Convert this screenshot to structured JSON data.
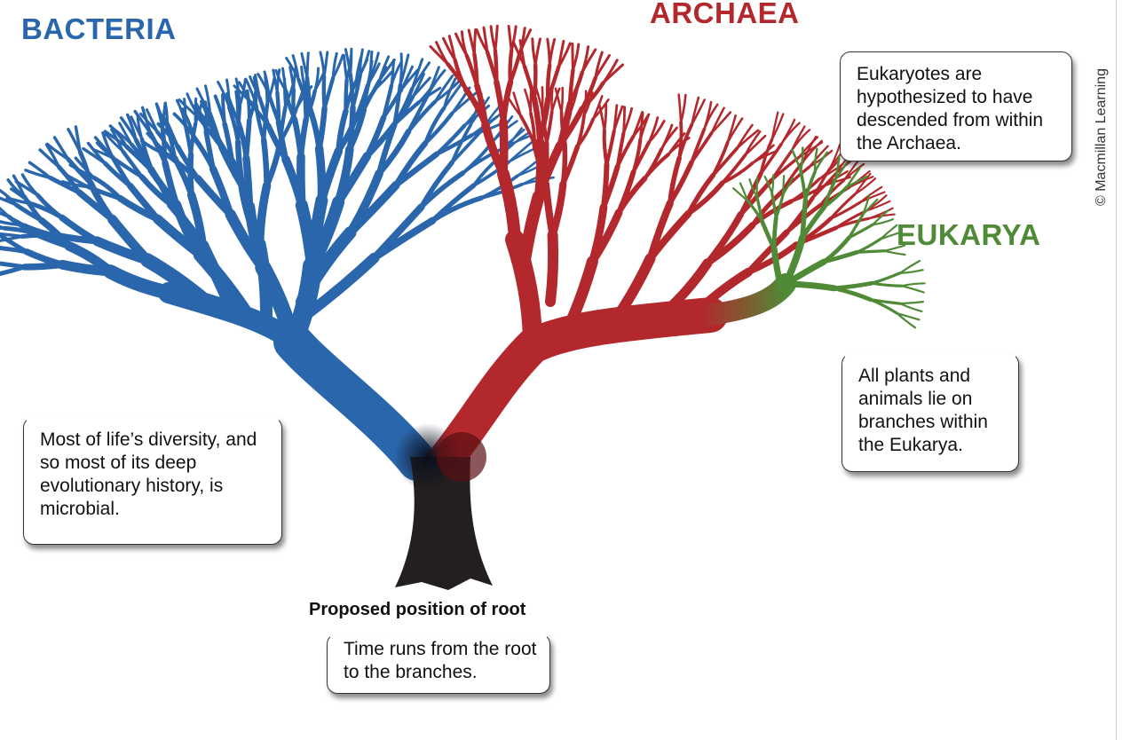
{
  "domains": [
    {
      "id": "bacteria",
      "label": "BACTERIA",
      "color": "#2a66ab"
    },
    {
      "id": "archaea",
      "label": "ARCHAEA",
      "color": "#b3282d"
    },
    {
      "id": "eukarya",
      "label": "EUKARYA",
      "color": "#4f8a36"
    }
  ],
  "root": {
    "caption": "Proposed position of root",
    "color": "#231f20"
  },
  "notes": {
    "eukaryotes": "Eukaryotes are hypothesized to have descended from within the Archaea.",
    "plants": "All plants and animals lie on branches within the Eukarya.",
    "microbial": "Most of life’s diversity, and so most of its deep evolutionary history, is microbial.",
    "time": "Time runs from the root to the branches."
  },
  "copyright": "© Macmillan Learning"
}
